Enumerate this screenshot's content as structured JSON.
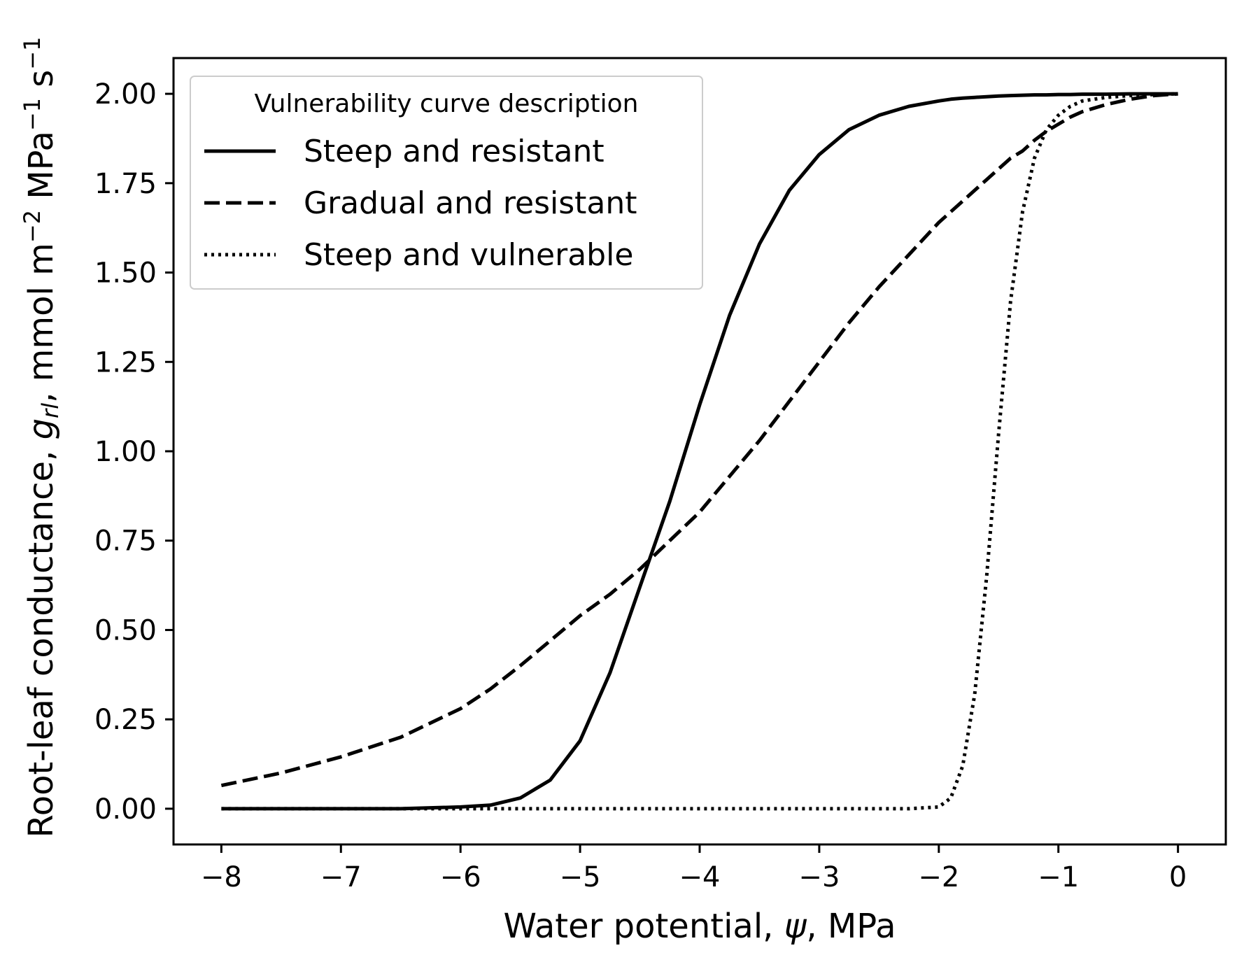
{
  "chart_data": {
    "type": "line",
    "xlabel": {
      "pre": "Water potential, ",
      "sym": "ψ",
      "post": ", MPa"
    },
    "ylabel": {
      "pre": "Root-leaf conductance, ",
      "sym": "g",
      "sub": "rl",
      "mid": ", mmol m",
      "exp1": "−2",
      "mid2": " MPa",
      "exp2": "−1",
      "mid3": " s",
      "exp3": "−1"
    },
    "xlim": [
      -8.4,
      0.4
    ],
    "ylim": [
      -0.1,
      2.1
    ],
    "xticks": [
      -8,
      -7,
      -6,
      -5,
      -4,
      -3,
      -2,
      -1,
      0
    ],
    "xtick_labels": [
      "−8",
      "−7",
      "−6",
      "−5",
      "−4",
      "−3",
      "−2",
      "−1",
      "0"
    ],
    "yticks": [
      0,
      0.25,
      0.5,
      0.75,
      1.0,
      1.25,
      1.5,
      1.75,
      2.0
    ],
    "ytick_labels": [
      "0.00",
      "0.25",
      "0.50",
      "0.75",
      "1.00",
      "1.25",
      "1.50",
      "1.75",
      "2.00"
    ],
    "grid": false,
    "legend": {
      "title": "Vulnerability curve description",
      "placement": "top-left"
    },
    "x": [
      -8,
      -7.5,
      -7,
      -6.5,
      -6,
      -5.75,
      -5.5,
      -5.25,
      -5,
      -4.75,
      -4.5,
      -4.25,
      -4,
      -3.75,
      -3.5,
      -3.25,
      -3,
      -2.75,
      -2.5,
      -2.25,
      -2,
      -1.9,
      -1.8,
      -1.7,
      -1.6,
      -1.5,
      -1.4,
      -1.3,
      -1.2,
      -1.1,
      -1,
      -0.9,
      -0.8,
      -0.6,
      -0.4,
      -0.2,
      0
    ],
    "series": [
      {
        "name": "Steep and resistant",
        "style": "solid",
        "color": "#000000",
        "values": [
          0.0,
          0.0,
          0.0,
          0.0,
          0.005,
          0.01,
          0.03,
          0.08,
          0.19,
          0.38,
          0.62,
          0.86,
          1.13,
          1.38,
          1.58,
          1.73,
          1.83,
          1.9,
          1.94,
          1.965,
          1.98,
          1.985,
          1.988,
          1.99,
          1.992,
          1.994,
          1.995,
          1.996,
          1.997,
          1.997,
          1.998,
          1.998,
          1.999,
          1.999,
          2.0,
          2.0,
          2.0
        ]
      },
      {
        "name": "Gradual and resistant",
        "style": "dashed",
        "color": "#000000",
        "values": [
          0.065,
          0.1,
          0.145,
          0.2,
          0.28,
          0.335,
          0.4,
          0.47,
          0.54,
          0.6,
          0.67,
          0.75,
          0.83,
          0.93,
          1.03,
          1.14,
          1.25,
          1.36,
          1.46,
          1.55,
          1.64,
          1.67,
          1.7,
          1.73,
          1.76,
          1.79,
          1.82,
          1.84,
          1.87,
          1.895,
          1.915,
          1.935,
          1.95,
          1.97,
          1.985,
          1.995,
          2.0
        ]
      },
      {
        "name": "Steep and vulnerable",
        "style": "dotted",
        "color": "#000000",
        "values": [
          0.0,
          0.0,
          0.0,
          0.0,
          0.0,
          0.0,
          0.0,
          0.0,
          0.0,
          0.0,
          0.0,
          0.0,
          0.0,
          0.0,
          0.0,
          0.0,
          0.0,
          0.0,
          0.0,
          0.0,
          0.005,
          0.03,
          0.12,
          0.32,
          0.65,
          1.05,
          1.42,
          1.67,
          1.82,
          1.9,
          1.94,
          1.965,
          1.98,
          1.99,
          1.995,
          1.998,
          2.0
        ]
      }
    ]
  }
}
